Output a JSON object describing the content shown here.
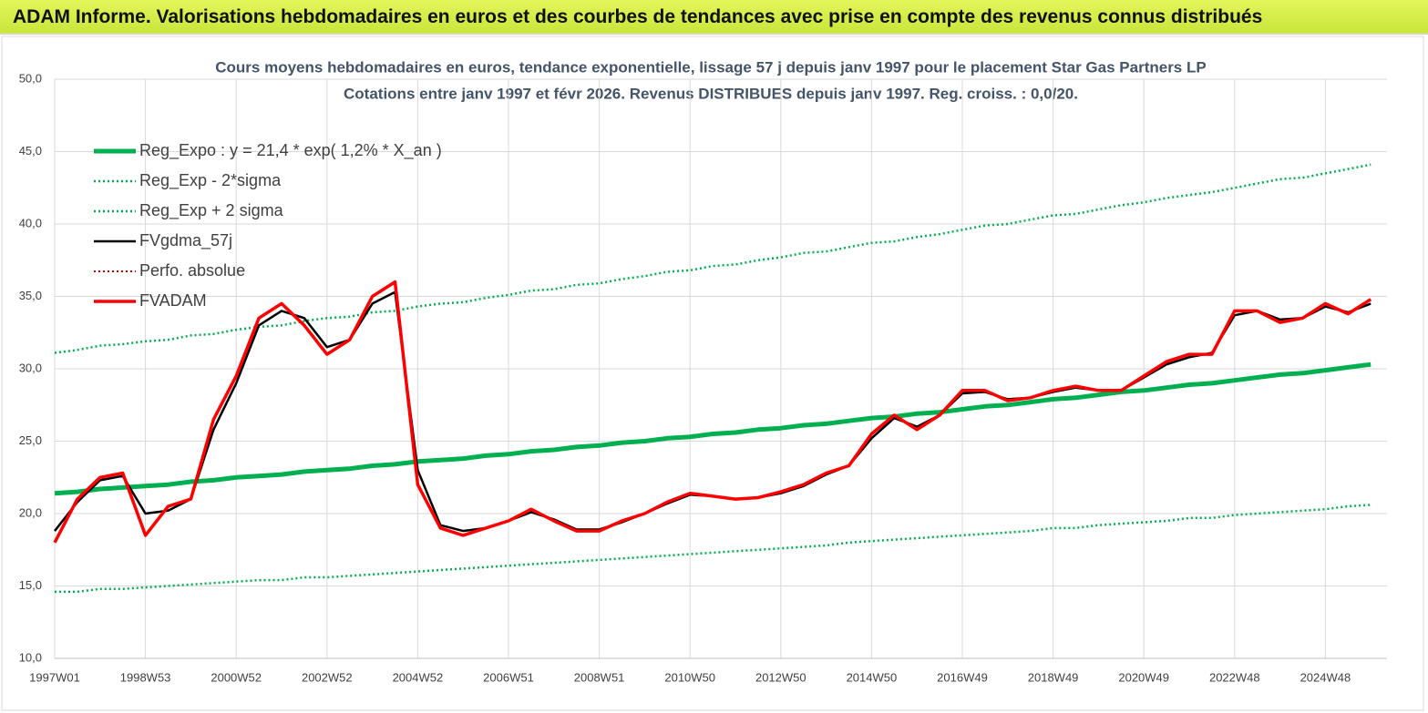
{
  "header": {
    "title": "ADAM Informe. Valorisations hebdomadaires en euros et des courbes de tendances avec prise en compte des revenus connus distribués"
  },
  "chart_data": {
    "type": "line",
    "title": "Cours moyens hebdomadaires en euros, tendance exponentielle, lissage 57 j depuis janv 1997 pour le placement Star Gas Partners LP",
    "subtitle": "Cotations entre janv 1997 et févr 2026. Revenus DISTRIBUES depuis janv 1997. Reg. croiss. : 0,0/20.",
    "categories": [
      "1997W01",
      null,
      null,
      null,
      "1998W53",
      null,
      null,
      null,
      "2000W52",
      null,
      null,
      null,
      "2002W52",
      null,
      null,
      null,
      "2004W52",
      null,
      null,
      null,
      "2006W51",
      null,
      null,
      null,
      "2008W51",
      null,
      null,
      null,
      "2010W50",
      null,
      null,
      null,
      "2012W50",
      null,
      null,
      null,
      "2014W50",
      null,
      null,
      null,
      "2016W49",
      null,
      null,
      null,
      "2018W49",
      null,
      null,
      null,
      "2020W49",
      null,
      null,
      null,
      "2022W48",
      null,
      null,
      null,
      "2024W48",
      null,
      null
    ],
    "ylim": [
      10,
      50
    ],
    "yticks": [
      {
        "value": 10,
        "label": "10,0"
      },
      {
        "value": 15,
        "label": "15,0"
      },
      {
        "value": 20,
        "label": "20,0"
      },
      {
        "value": 25,
        "label": "25,0"
      },
      {
        "value": 30,
        "label": "30,0"
      },
      {
        "value": 35,
        "label": "35,0"
      },
      {
        "value": 40,
        "label": "40,0"
      },
      {
        "value": 45,
        "label": "45,0"
      },
      {
        "value": 50,
        "label": "50,0"
      }
    ],
    "grid": true,
    "legend": "top-left",
    "series": [
      {
        "name": "Reg_Expo : y = 21,4 * exp( 1,2% *  X_an )",
        "color": "#00b050",
        "style": "solid",
        "width": 5,
        "values": [
          21.4,
          21.5,
          21.7,
          21.8,
          21.9,
          22.0,
          22.2,
          22.3,
          22.5,
          22.6,
          22.7,
          22.9,
          23.0,
          23.1,
          23.3,
          23.4,
          23.6,
          23.7,
          23.8,
          24.0,
          24.1,
          24.3,
          24.4,
          24.6,
          24.7,
          24.9,
          25.0,
          25.2,
          25.3,
          25.5,
          25.6,
          25.8,
          25.9,
          26.1,
          26.2,
          26.4,
          26.6,
          26.7,
          26.9,
          27.0,
          27.2,
          27.4,
          27.5,
          27.7,
          27.9,
          28.0,
          28.2,
          28.4,
          28.5,
          28.7,
          28.9,
          29.0,
          29.2,
          29.4,
          29.6,
          29.7,
          29.9,
          30.1,
          30.3
        ]
      },
      {
        "name": "Reg_Exp - 2*sigma",
        "color": "#00b050",
        "style": "dotted",
        "width": 2.5,
        "values": [
          14.6,
          14.6,
          14.8,
          14.8,
          14.9,
          15.0,
          15.1,
          15.2,
          15.3,
          15.4,
          15.4,
          15.6,
          15.6,
          15.7,
          15.8,
          15.9,
          16.0,
          16.1,
          16.2,
          16.3,
          16.4,
          16.5,
          16.6,
          16.7,
          16.8,
          16.9,
          17.0,
          17.1,
          17.2,
          17.3,
          17.4,
          17.5,
          17.6,
          17.7,
          17.8,
          18.0,
          18.1,
          18.2,
          18.3,
          18.4,
          18.5,
          18.6,
          18.7,
          18.8,
          19.0,
          19.0,
          19.2,
          19.3,
          19.4,
          19.5,
          19.7,
          19.7,
          19.9,
          20.0,
          20.1,
          20.2,
          20.3,
          20.5,
          20.6
        ]
      },
      {
        "name": "Reg_Exp + 2 sigma",
        "color": "#00b050",
        "style": "dotted",
        "width": 2.5,
        "values": [
          31.1,
          31.3,
          31.6,
          31.7,
          31.9,
          32.0,
          32.3,
          32.4,
          32.7,
          32.9,
          33.0,
          33.3,
          33.5,
          33.6,
          33.9,
          34.0,
          34.3,
          34.5,
          34.6,
          34.9,
          35.1,
          35.4,
          35.5,
          35.8,
          35.9,
          36.2,
          36.4,
          36.7,
          36.8,
          37.1,
          37.2,
          37.5,
          37.7,
          38.0,
          38.1,
          38.4,
          38.7,
          38.8,
          39.1,
          39.3,
          39.6,
          39.9,
          40.0,
          40.3,
          40.6,
          40.7,
          41.0,
          41.3,
          41.5,
          41.8,
          42.0,
          42.2,
          42.5,
          42.8,
          43.1,
          43.2,
          43.5,
          43.8,
          44.1
        ]
      },
      {
        "name": "FVgdma_57j",
        "color": "#000000",
        "style": "solid",
        "width": 2.5,
        "values": [
          18.8,
          20.8,
          22.3,
          22.6,
          20.0,
          20.2,
          21.0,
          25.8,
          29.0,
          33.0,
          34.0,
          33.5,
          31.5,
          32.0,
          34.5,
          35.3,
          23.0,
          19.2,
          18.8,
          19.0,
          19.5,
          20.1,
          19.6,
          18.9,
          18.9,
          19.4,
          20.0,
          20.7,
          21.3,
          21.2,
          21.0,
          21.1,
          21.4,
          21.9,
          22.7,
          23.3,
          25.2,
          26.6,
          26.0,
          26.8,
          28.3,
          28.4,
          27.9,
          28.0,
          28.4,
          28.7,
          28.5,
          28.5,
          29.4,
          30.3,
          30.8,
          31.1,
          33.7,
          34.0,
          33.4,
          33.5,
          34.3,
          33.9,
          34.5
        ]
      },
      {
        "name": "Perfo. absolue",
        "color": "#c00000",
        "style": "dotted",
        "width": 2,
        "values": [
          null,
          null,
          null,
          null,
          null,
          null,
          null,
          null,
          null,
          null,
          null,
          null,
          null,
          null,
          null,
          null,
          null,
          null,
          null,
          null,
          null,
          null,
          null,
          null,
          null,
          null,
          null,
          null,
          null,
          null,
          null,
          null,
          null,
          null,
          null,
          null,
          null,
          null,
          null,
          null,
          null,
          null,
          null,
          null,
          null,
          null,
          null,
          null,
          null,
          null,
          null,
          null,
          null,
          null,
          null,
          null,
          null,
          null,
          null
        ]
      },
      {
        "name": "FVADAM",
        "color": "#ff0000",
        "style": "solid",
        "width": 3.5,
        "values": [
          18.0,
          21.0,
          22.5,
          22.8,
          18.5,
          20.5,
          21.0,
          26.5,
          29.5,
          33.5,
          34.5,
          33.0,
          31.0,
          32.0,
          35.0,
          36.0,
          22.0,
          19.0,
          18.5,
          19.0,
          19.5,
          20.3,
          19.5,
          18.8,
          18.8,
          19.5,
          20.0,
          20.8,
          21.4,
          21.2,
          21.0,
          21.1,
          21.5,
          22.0,
          22.8,
          23.3,
          25.5,
          26.8,
          25.8,
          26.8,
          28.5,
          28.5,
          27.8,
          28.0,
          28.5,
          28.8,
          28.5,
          28.5,
          29.5,
          30.5,
          31.0,
          31.0,
          34.0,
          34.0,
          33.2,
          33.5,
          34.5,
          33.8,
          34.8
        ]
      }
    ]
  }
}
